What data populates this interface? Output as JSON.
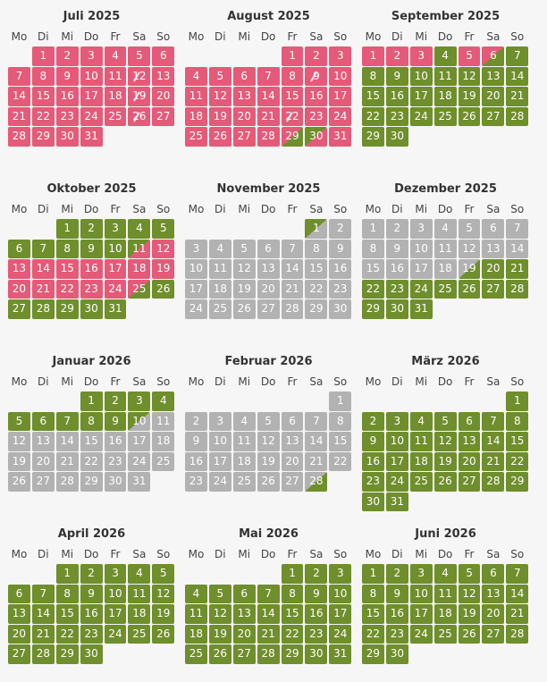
{
  "weekdays": [
    "Mo",
    "Di",
    "Mi",
    "Do",
    "Fr",
    "Sa",
    "So"
  ],
  "colors": {
    "booked": "#e45a78",
    "available": "#6f8e2c",
    "unavailable": "#b2b2b2"
  },
  "months": [
    {
      "title": "Juli 2025",
      "offset": 1,
      "days": [
        [
          "1",
          "r"
        ],
        [
          "2",
          "r"
        ],
        [
          "3",
          "r"
        ],
        [
          "4",
          "r"
        ],
        [
          "5",
          "r"
        ],
        [
          "6",
          "r"
        ],
        [
          "7",
          "r"
        ],
        [
          "8",
          "r"
        ],
        [
          "9",
          "r"
        ],
        [
          "10",
          "r"
        ],
        [
          "11",
          "r"
        ],
        [
          "12",
          "r rs"
        ],
        [
          "13",
          "r"
        ],
        [
          "14",
          "r"
        ],
        [
          "15",
          "r"
        ],
        [
          "16",
          "r"
        ],
        [
          "17",
          "r"
        ],
        [
          "18",
          "r"
        ],
        [
          "19",
          "r rs"
        ],
        [
          "20",
          "r"
        ],
        [
          "21",
          "r"
        ],
        [
          "22",
          "r"
        ],
        [
          "23",
          "r"
        ],
        [
          "24",
          "r"
        ],
        [
          "25",
          "r"
        ],
        [
          "26",
          "r rs"
        ],
        [
          "27",
          "r"
        ],
        [
          "28",
          "r"
        ],
        [
          "29",
          "r"
        ],
        [
          "30",
          "r"
        ],
        [
          "31",
          "r"
        ]
      ]
    },
    {
      "title": "August 2025",
      "offset": 4,
      "days": [
        [
          "1",
          "r"
        ],
        [
          "2",
          "r"
        ],
        [
          "3",
          "r"
        ],
        [
          "4",
          "r"
        ],
        [
          "5",
          "r"
        ],
        [
          "6",
          "r"
        ],
        [
          "7",
          "r"
        ],
        [
          "8",
          "r"
        ],
        [
          "9",
          "r rs"
        ],
        [
          "10",
          "r"
        ],
        [
          "11",
          "r"
        ],
        [
          "12",
          "r"
        ],
        [
          "13",
          "r"
        ],
        [
          "14",
          "r"
        ],
        [
          "15",
          "r"
        ],
        [
          "16",
          "r"
        ],
        [
          "17",
          "r"
        ],
        [
          "18",
          "r"
        ],
        [
          "19",
          "r"
        ],
        [
          "20",
          "r"
        ],
        [
          "21",
          "r"
        ],
        [
          "22",
          "r rs"
        ],
        [
          "23",
          "r"
        ],
        [
          "24",
          "r"
        ],
        [
          "25",
          "r"
        ],
        [
          "26",
          "r"
        ],
        [
          "27",
          "r"
        ],
        [
          "28",
          "r"
        ],
        [
          "29",
          "rg"
        ],
        [
          "30",
          "gr"
        ],
        [
          "31",
          "r"
        ]
      ]
    },
    {
      "title": "September 2025",
      "offset": 0,
      "days": [
        [
          "1",
          "r"
        ],
        [
          "2",
          "r"
        ],
        [
          "3",
          "r"
        ],
        [
          "4",
          "g"
        ],
        [
          "5",
          "r"
        ],
        [
          "6",
          "rg"
        ],
        [
          "7",
          "g"
        ],
        [
          "8",
          "g"
        ],
        [
          "9",
          "g"
        ],
        [
          "10",
          "g"
        ],
        [
          "11",
          "g"
        ],
        [
          "12",
          "g"
        ],
        [
          "13",
          "g"
        ],
        [
          "14",
          "g"
        ],
        [
          "15",
          "g"
        ],
        [
          "16",
          "g"
        ],
        [
          "17",
          "g"
        ],
        [
          "18",
          "g"
        ],
        [
          "19",
          "g"
        ],
        [
          "20",
          "g"
        ],
        [
          "21",
          "g"
        ],
        [
          "22",
          "g"
        ],
        [
          "23",
          "g"
        ],
        [
          "24",
          "g"
        ],
        [
          "25",
          "g"
        ],
        [
          "26",
          "g"
        ],
        [
          "27",
          "g"
        ],
        [
          "28",
          "g"
        ],
        [
          "29",
          "g"
        ],
        [
          "30",
          "g"
        ]
      ]
    },
    {
      "title": "Oktober 2025",
      "offset": 2,
      "days": [
        [
          "1",
          "g"
        ],
        [
          "2",
          "g"
        ],
        [
          "3",
          "g"
        ],
        [
          "4",
          "g"
        ],
        [
          "5",
          "g"
        ],
        [
          "6",
          "g"
        ],
        [
          "7",
          "g"
        ],
        [
          "8",
          "g"
        ],
        [
          "9",
          "g"
        ],
        [
          "10",
          "g"
        ],
        [
          "11",
          "gr"
        ],
        [
          "12",
          "r"
        ],
        [
          "13",
          "r"
        ],
        [
          "14",
          "r"
        ],
        [
          "15",
          "r"
        ],
        [
          "16",
          "r"
        ],
        [
          "17",
          "r"
        ],
        [
          "18",
          "r"
        ],
        [
          "19",
          "r"
        ],
        [
          "20",
          "r"
        ],
        [
          "21",
          "r"
        ],
        [
          "22",
          "r"
        ],
        [
          "23",
          "r"
        ],
        [
          "24",
          "r"
        ],
        [
          "25",
          "rg"
        ],
        [
          "26",
          "g"
        ],
        [
          "27",
          "g"
        ],
        [
          "28",
          "g"
        ],
        [
          "29",
          "g"
        ],
        [
          "30",
          "g"
        ],
        [
          "31",
          "g"
        ]
      ]
    },
    {
      "title": "November 2025",
      "offset": 5,
      "days": [
        [
          "1",
          "gx"
        ],
        [
          "2",
          "x"
        ],
        [
          "3",
          "x"
        ],
        [
          "4",
          "x"
        ],
        [
          "5",
          "x"
        ],
        [
          "6",
          "x"
        ],
        [
          "7",
          "x"
        ],
        [
          "8",
          "x"
        ],
        [
          "9",
          "x"
        ],
        [
          "10",
          "x"
        ],
        [
          "11",
          "x"
        ],
        [
          "12",
          "x"
        ],
        [
          "13",
          "x"
        ],
        [
          "14",
          "x"
        ],
        [
          "15",
          "x"
        ],
        [
          "16",
          "x"
        ],
        [
          "17",
          "x"
        ],
        [
          "18",
          "x"
        ],
        [
          "19",
          "x"
        ],
        [
          "20",
          "x"
        ],
        [
          "21",
          "x"
        ],
        [
          "22",
          "x"
        ],
        [
          "23",
          "x"
        ],
        [
          "24",
          "x"
        ],
        [
          "25",
          "x"
        ],
        [
          "26",
          "x"
        ],
        [
          "27",
          "x"
        ],
        [
          "28",
          "x"
        ],
        [
          "29",
          "x"
        ],
        [
          "30",
          "x"
        ]
      ]
    },
    {
      "title": "Dezember 2025",
      "offset": 0,
      "days": [
        [
          "1",
          "x"
        ],
        [
          "2",
          "x"
        ],
        [
          "3",
          "x"
        ],
        [
          "4",
          "x"
        ],
        [
          "5",
          "x"
        ],
        [
          "6",
          "x"
        ],
        [
          "7",
          "x"
        ],
        [
          "8",
          "x"
        ],
        [
          "9",
          "x"
        ],
        [
          "10",
          "x"
        ],
        [
          "11",
          "x"
        ],
        [
          "12",
          "x"
        ],
        [
          "13",
          "x"
        ],
        [
          "14",
          "x"
        ],
        [
          "15",
          "x"
        ],
        [
          "16",
          "x"
        ],
        [
          "17",
          "x"
        ],
        [
          "18",
          "x"
        ],
        [
          "19",
          "xg"
        ],
        [
          "20",
          "g"
        ],
        [
          "21",
          "g"
        ],
        [
          "22",
          "g"
        ],
        [
          "23",
          "g"
        ],
        [
          "24",
          "g"
        ],
        [
          "25",
          "g"
        ],
        [
          "26",
          "g"
        ],
        [
          "27",
          "g"
        ],
        [
          "28",
          "g"
        ],
        [
          "29",
          "g"
        ],
        [
          "30",
          "g"
        ],
        [
          "31",
          "g"
        ]
      ]
    },
    {
      "title": "Januar 2026",
      "offset": 3,
      "days": [
        [
          "1",
          "g"
        ],
        [
          "2",
          "g"
        ],
        [
          "3",
          "g"
        ],
        [
          "4",
          "g"
        ],
        [
          "5",
          "g"
        ],
        [
          "6",
          "g"
        ],
        [
          "7",
          "g"
        ],
        [
          "8",
          "g"
        ],
        [
          "9",
          "g"
        ],
        [
          "10",
          "gx"
        ],
        [
          "11",
          "x"
        ],
        [
          "12",
          "x"
        ],
        [
          "13",
          "x"
        ],
        [
          "14",
          "x"
        ],
        [
          "15",
          "x"
        ],
        [
          "16",
          "x"
        ],
        [
          "17",
          "x"
        ],
        [
          "18",
          "x"
        ],
        [
          "19",
          "x"
        ],
        [
          "20",
          "x"
        ],
        [
          "21",
          "x"
        ],
        [
          "22",
          "x"
        ],
        [
          "23",
          "x"
        ],
        [
          "24",
          "x"
        ],
        [
          "25",
          "x"
        ],
        [
          "26",
          "x"
        ],
        [
          "27",
          "x"
        ],
        [
          "28",
          "x"
        ],
        [
          "29",
          "x"
        ],
        [
          "30",
          "x"
        ],
        [
          "31",
          "x"
        ]
      ]
    },
    {
      "title": "Februar 2026",
      "offset": 6,
      "days": [
        [
          "1",
          "x"
        ],
        [
          "2",
          "x"
        ],
        [
          "3",
          "x"
        ],
        [
          "4",
          "x"
        ],
        [
          "5",
          "x"
        ],
        [
          "6",
          "x"
        ],
        [
          "7",
          "x"
        ],
        [
          "8",
          "x"
        ],
        [
          "9",
          "x"
        ],
        [
          "10",
          "x"
        ],
        [
          "11",
          "x"
        ],
        [
          "12",
          "x"
        ],
        [
          "13",
          "x"
        ],
        [
          "14",
          "x"
        ],
        [
          "15",
          "x"
        ],
        [
          "16",
          "x"
        ],
        [
          "17",
          "x"
        ],
        [
          "18",
          "x"
        ],
        [
          "19",
          "x"
        ],
        [
          "20",
          "x"
        ],
        [
          "21",
          "x"
        ],
        [
          "22",
          "x"
        ],
        [
          "23",
          "x"
        ],
        [
          "24",
          "x"
        ],
        [
          "25",
          "x"
        ],
        [
          "26",
          "x"
        ],
        [
          "27",
          "x"
        ],
        [
          "28",
          "xg"
        ]
      ]
    },
    {
      "title": "März 2026",
      "offset": 6,
      "days": [
        [
          "1",
          "g"
        ],
        [
          "2",
          "g"
        ],
        [
          "3",
          "g"
        ],
        [
          "4",
          "g"
        ],
        [
          "5",
          "g"
        ],
        [
          "6",
          "g"
        ],
        [
          "7",
          "g"
        ],
        [
          "8",
          "g"
        ],
        [
          "9",
          "g"
        ],
        [
          "10",
          "g"
        ],
        [
          "11",
          "g"
        ],
        [
          "12",
          "g"
        ],
        [
          "13",
          "g"
        ],
        [
          "14",
          "g"
        ],
        [
          "15",
          "g"
        ],
        [
          "16",
          "g"
        ],
        [
          "17",
          "g"
        ],
        [
          "18",
          "g"
        ],
        [
          "19",
          "g"
        ],
        [
          "20",
          "g"
        ],
        [
          "21",
          "g"
        ],
        [
          "22",
          "g"
        ],
        [
          "23",
          "g"
        ],
        [
          "24",
          "g"
        ],
        [
          "25",
          "g"
        ],
        [
          "26",
          "g"
        ],
        [
          "27",
          "g"
        ],
        [
          "28",
          "g"
        ],
        [
          "29",
          "g"
        ],
        [
          "30",
          "g"
        ],
        [
          "31",
          "g"
        ]
      ]
    },
    {
      "title": "April 2026",
      "offset": 2,
      "days": [
        [
          "1",
          "g"
        ],
        [
          "2",
          "g"
        ],
        [
          "3",
          "g"
        ],
        [
          "4",
          "g"
        ],
        [
          "5",
          "g"
        ],
        [
          "6",
          "g"
        ],
        [
          "7",
          "g"
        ],
        [
          "8",
          "g"
        ],
        [
          "9",
          "g"
        ],
        [
          "10",
          "g"
        ],
        [
          "11",
          "g"
        ],
        [
          "12",
          "g"
        ],
        [
          "13",
          "g"
        ],
        [
          "14",
          "g"
        ],
        [
          "15",
          "g"
        ],
        [
          "16",
          "g"
        ],
        [
          "17",
          "g"
        ],
        [
          "18",
          "g"
        ],
        [
          "19",
          "g"
        ],
        [
          "20",
          "g"
        ],
        [
          "21",
          "g"
        ],
        [
          "22",
          "g"
        ],
        [
          "23",
          "g"
        ],
        [
          "24",
          "g"
        ],
        [
          "25",
          "g"
        ],
        [
          "26",
          "g"
        ],
        [
          "27",
          "g"
        ],
        [
          "28",
          "g"
        ],
        [
          "29",
          "g"
        ],
        [
          "30",
          "g"
        ]
      ]
    },
    {
      "title": "Mai 2026",
      "offset": 4,
      "days": [
        [
          "1",
          "g"
        ],
        [
          "2",
          "g"
        ],
        [
          "3",
          "g"
        ],
        [
          "4",
          "g"
        ],
        [
          "5",
          "g"
        ],
        [
          "6",
          "g"
        ],
        [
          "7",
          "g"
        ],
        [
          "8",
          "g"
        ],
        [
          "9",
          "g"
        ],
        [
          "10",
          "g"
        ],
        [
          "11",
          "g"
        ],
        [
          "12",
          "g"
        ],
        [
          "13",
          "g"
        ],
        [
          "14",
          "g"
        ],
        [
          "15",
          "g"
        ],
        [
          "16",
          "g"
        ],
        [
          "17",
          "g"
        ],
        [
          "18",
          "g"
        ],
        [
          "19",
          "g"
        ],
        [
          "20",
          "g"
        ],
        [
          "21",
          "g"
        ],
        [
          "22",
          "g"
        ],
        [
          "23",
          "g"
        ],
        [
          "24",
          "g"
        ],
        [
          "25",
          "g"
        ],
        [
          "26",
          "g"
        ],
        [
          "27",
          "g"
        ],
        [
          "28",
          "g"
        ],
        [
          "29",
          "g"
        ],
        [
          "30",
          "g"
        ],
        [
          "31",
          "g"
        ]
      ]
    },
    {
      "title": "Juni 2026",
      "offset": 0,
      "days": [
        [
          "1",
          "g"
        ],
        [
          "2",
          "g"
        ],
        [
          "3",
          "g"
        ],
        [
          "4",
          "g"
        ],
        [
          "5",
          "g"
        ],
        [
          "6",
          "g"
        ],
        [
          "7",
          "g"
        ],
        [
          "8",
          "g"
        ],
        [
          "9",
          "g"
        ],
        [
          "10",
          "g"
        ],
        [
          "11",
          "g"
        ],
        [
          "12",
          "g"
        ],
        [
          "13",
          "g"
        ],
        [
          "14",
          "g"
        ],
        [
          "15",
          "g"
        ],
        [
          "16",
          "g"
        ],
        [
          "17",
          "g"
        ],
        [
          "18",
          "g"
        ],
        [
          "19",
          "g"
        ],
        [
          "20",
          "g"
        ],
        [
          "21",
          "g"
        ],
        [
          "22",
          "g"
        ],
        [
          "23",
          "g"
        ],
        [
          "24",
          "g"
        ],
        [
          "25",
          "g"
        ],
        [
          "26",
          "g"
        ],
        [
          "27",
          "g"
        ],
        [
          "28",
          "g"
        ],
        [
          "29",
          "g"
        ],
        [
          "30",
          "g"
        ]
      ]
    }
  ]
}
